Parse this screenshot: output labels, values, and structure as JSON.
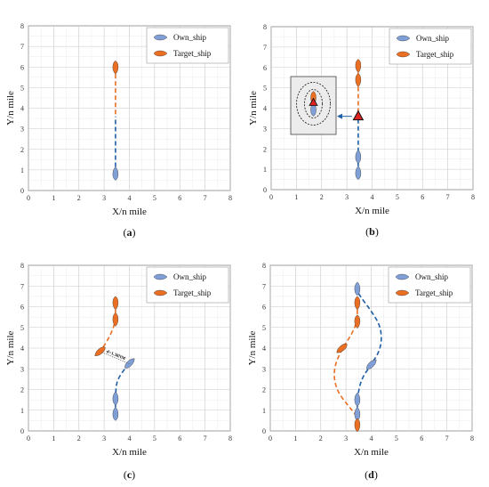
{
  "figure": {
    "panels": [
      {
        "id": "a",
        "label": "(a)",
        "xlabel": "X/n mile",
        "ylabel": "Y/n mile",
        "xlim": [
          0,
          8
        ],
        "ylim": [
          0,
          8
        ],
        "x_ticks": [
          "0",
          "1",
          "2",
          "3",
          "4",
          "5",
          "6",
          "7",
          "8"
        ],
        "y_ticks": [
          "0",
          "1",
          "2",
          "3",
          "4",
          "5",
          "6",
          "7",
          "8"
        ],
        "legend": [
          {
            "name": "Own_ship",
            "color": "#7f9fd6"
          },
          {
            "name": "Target_ship",
            "color": "#ea6f22"
          }
        ]
      },
      {
        "id": "b",
        "label": "(b)",
        "xlabel": "X/n mile",
        "ylabel": "Y/n mile",
        "xlim": [
          0,
          8
        ],
        "ylim": [
          0,
          8
        ],
        "x_ticks": [
          "0",
          "1",
          "2",
          "3",
          "4",
          "5",
          "6",
          "7",
          "8"
        ],
        "y_ticks": [
          "0",
          "1",
          "2",
          "3",
          "4",
          "5",
          "6",
          "7",
          "8"
        ],
        "legend": [
          {
            "name": "Own_ship",
            "color": "#7f9fd6"
          },
          {
            "name": "Target_ship",
            "color": "#ea6f22"
          }
        ]
      },
      {
        "id": "c",
        "label": "(c)",
        "xlabel": "X/n mile",
        "ylabel": "Y/n mile",
        "xlim": [
          0,
          8
        ],
        "ylim": [
          0,
          8
        ],
        "x_ticks": [
          "0",
          "1",
          "2",
          "3",
          "4",
          "5",
          "6",
          "7",
          "8"
        ],
        "y_ticks": [
          "0",
          "1",
          "2",
          "3",
          "4",
          "5",
          "6",
          "7",
          "8"
        ],
        "legend": [
          {
            "name": "Own_ship",
            "color": "#7f9fd6"
          },
          {
            "name": "Target_ship",
            "color": "#ea6f22"
          }
        ],
        "annotation": "d=1.38NM"
      },
      {
        "id": "d",
        "label": "(d)",
        "xlabel": "X/n mile",
        "ylabel": "Y/n mile",
        "xlim": [
          0,
          8
        ],
        "ylim": [
          0,
          8
        ],
        "x_ticks": [
          "0",
          "1",
          "2",
          "3",
          "4",
          "5",
          "6",
          "7",
          "8"
        ],
        "y_ticks": [
          "0",
          "1",
          "2",
          "3",
          "4",
          "5",
          "6",
          "7",
          "8"
        ],
        "legend": [
          {
            "name": "Own_ship",
            "color": "#7f9fd6"
          },
          {
            "name": "Target_ship",
            "color": "#ea6f22"
          }
        ]
      }
    ]
  },
  "chart_data": [
    {
      "type": "line",
      "panel": "a",
      "title": "",
      "xlabel": "X/n mile",
      "ylabel": "Y/n mile",
      "xlim": [
        0,
        8
      ],
      "ylim": [
        0,
        8
      ],
      "grid": true,
      "legend_position": "top-right",
      "series": [
        {
          "name": "Own_ship",
          "color": "#1f5fa8",
          "style": "dashed",
          "points": [
            [
              3.45,
              0.8
            ],
            [
              3.45,
              3.6
            ]
          ],
          "ship_markers": [
            [
              3.45,
              0.8,
              90
            ]
          ]
        },
        {
          "name": "Target_ship",
          "color": "#ea6f22",
          "style": "dashed",
          "points": [
            [
              3.45,
              6.0
            ],
            [
              3.45,
              3.6
            ]
          ],
          "ship_markers": [
            [
              3.45,
              6.0,
              -90
            ]
          ]
        }
      ]
    },
    {
      "type": "line",
      "panel": "b",
      "title": "",
      "xlabel": "X/n mile",
      "ylabel": "Y/n mile",
      "xlim": [
        0,
        8
      ],
      "ylim": [
        0,
        8
      ],
      "grid": true,
      "legend_position": "top-right",
      "series": [
        {
          "name": "Own_ship",
          "color": "#1f5fa8",
          "style": "dashed",
          "points": [
            [
              3.45,
              0.8
            ],
            [
              3.45,
              3.5
            ]
          ],
          "ship_markers": [
            [
              3.45,
              0.8,
              90
            ],
            [
              3.45,
              1.6,
              90
            ]
          ]
        },
        {
          "name": "Target_ship",
          "color": "#ea6f22",
          "style": "dashed",
          "points": [
            [
              3.45,
              6.1
            ],
            [
              3.45,
              3.7
            ]
          ],
          "ship_markers": [
            [
              3.45,
              6.1,
              -90
            ],
            [
              3.45,
              5.4,
              -90
            ]
          ]
        }
      ],
      "collision_point": [
        3.45,
        3.6
      ]
    },
    {
      "type": "line",
      "panel": "c",
      "title": "",
      "xlabel": "X/n mile",
      "ylabel": "Y/n mile",
      "xlim": [
        0,
        8
      ],
      "ylim": [
        0,
        8
      ],
      "grid": true,
      "legend_position": "top-right",
      "series": [
        {
          "name": "Own_ship",
          "color": "#1f5fa8",
          "style": "dashed",
          "points": [
            [
              3.45,
              0.8
            ],
            [
              3.45,
              1.8
            ],
            [
              3.5,
              2.4
            ],
            [
              3.75,
              2.9
            ],
            [
              4.0,
              3.25
            ]
          ],
          "ship_markers": [
            [
              3.45,
              0.8,
              90
            ],
            [
              3.45,
              1.55,
              90
            ],
            [
              4.0,
              3.25,
              45
            ]
          ]
        },
        {
          "name": "Target_ship",
          "color": "#ea6f22",
          "style": "dashed",
          "points": [
            [
              3.45,
              6.2
            ],
            [
              3.45,
              5.4
            ],
            [
              3.35,
              4.9
            ],
            [
              3.1,
              4.3
            ],
            [
              2.85,
              3.85
            ]
          ],
          "ship_markers": [
            [
              3.45,
              6.2,
              -90
            ],
            [
              3.45,
              5.4,
              -90
            ],
            [
              2.85,
              3.85,
              -140
            ]
          ]
        }
      ],
      "annotation": {
        "text": "d=1.38NM",
        "from": [
          2.9,
          3.8
        ],
        "to": [
          4.0,
          3.25
        ]
      }
    },
    {
      "type": "line",
      "panel": "d",
      "title": "",
      "xlabel": "X/n mile",
      "ylabel": "Y/n mile",
      "xlim": [
        0,
        8
      ],
      "ylim": [
        0,
        8
      ],
      "grid": true,
      "legend_position": "top-right",
      "series": [
        {
          "name": "Own_ship",
          "color": "#1f5fa8",
          "style": "dashed",
          "points": [
            [
              3.45,
              0.8
            ],
            [
              3.45,
              1.6
            ],
            [
              3.6,
              2.5
            ],
            [
              4.0,
              3.2
            ],
            [
              4.4,
              4.0
            ],
            [
              4.4,
              5.0
            ],
            [
              4.0,
              5.8
            ],
            [
              3.5,
              6.6
            ],
            [
              3.45,
              6.85
            ]
          ],
          "ship_markers": [
            [
              3.45,
              0.8,
              90
            ],
            [
              3.45,
              1.5,
              90
            ],
            [
              4.0,
              3.2,
              45
            ],
            [
              3.45,
              6.85,
              90
            ]
          ]
        },
        {
          "name": "Target_ship",
          "color": "#ea6f22",
          "style": "dashed",
          "points": [
            [
              3.45,
              6.2
            ],
            [
              3.45,
              5.3
            ],
            [
              3.2,
              4.6
            ],
            [
              2.85,
              4.0
            ],
            [
              2.5,
              3.0
            ],
            [
              2.6,
              2.0
            ],
            [
              3.1,
              1.2
            ],
            [
              3.45,
              0.7
            ],
            [
              3.45,
              0.3
            ]
          ],
          "ship_markers": [
            [
              3.45,
              6.2,
              -90
            ],
            [
              3.45,
              5.3,
              -90
            ],
            [
              2.85,
              4.0,
              -140
            ],
            [
              3.45,
              0.3,
              -90
            ]
          ]
        }
      ]
    }
  ]
}
